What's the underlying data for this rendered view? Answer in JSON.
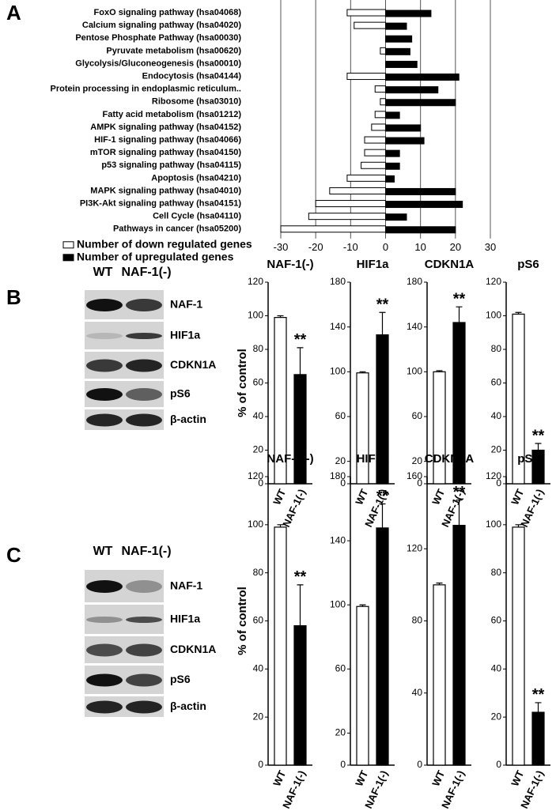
{
  "panel_labels": [
    "A",
    "B",
    "C"
  ],
  "blots": [
    {
      "lanes": [
        "WT",
        "NAF-1(-)"
      ],
      "proteins": [
        "NAF-1",
        "HIF1a",
        "CDKN1A",
        "pS6",
        "β-actin"
      ]
    },
    {
      "lanes": [
        "WT",
        "NAF-1(-)"
      ],
      "proteins": [
        "NAF-1",
        "HIF1a",
        "CDKN1A",
        "pS6",
        "β-actin"
      ]
    }
  ],
  "chart_data": [
    {
      "type": "bar",
      "orientation": "horizontal",
      "categories": [
        "FoxO signaling pathway (hsa04068)",
        "Calcium signaling pathway (hsa04020)",
        "Pentose Phosphate Pathway (hsa00030)",
        "Pyruvate metabolism (hsa00620)",
        "Glycolysis/Gluconeogenesis (hsa00010)",
        "Endocytosis (hsa04144)",
        "Protein processing in endoplasmic reticulum..",
        "Ribosome (hsa03010)",
        "Fatty acid metabolism (hsa01212)",
        "AMPK signaling pathway (hsa04152)",
        "HIF-1 signaling pathway (hsa04066)",
        "mTOR signaling pathway (hsa04150)",
        "p53 signaling pathway (hsa04115)",
        "Apoptosis (hsa04210)",
        "MAPK signaling pathway (hsa04010)",
        "PI3K-Akt signaling pathway (hsa04151)",
        "Cell Cycle (hsa04110)",
        "Pathways in cancer (hsa05200)"
      ],
      "series": [
        {
          "name": "Number of down regulated genes",
          "color": "#ffffff",
          "values": [
            -11,
            -9,
            0,
            -1.5,
            0,
            -11,
            -3,
            -1.5,
            -3,
            -4,
            -6,
            -6,
            -7,
            -11,
            -16,
            -20,
            -22,
            -30
          ]
        },
        {
          "name": "Number of upregulated genes",
          "color": "#000000",
          "values": [
            13,
            6,
            7.5,
            7,
            9,
            21,
            15,
            20,
            4,
            10,
            11,
            4,
            4,
            2.5,
            20,
            22,
            6,
            20
          ]
        }
      ],
      "xlim": [
        -30,
        30
      ],
      "xticks": [
        -30,
        -20,
        -10,
        0,
        10,
        20,
        30
      ],
      "grid": true
    },
    {
      "type": "bar",
      "title": "NAF-1(-)",
      "ylabel": "% of control",
      "categories": [
        "WT",
        "NAF-1(-)"
      ],
      "values": [
        99,
        65
      ],
      "errors": [
        1,
        16
      ],
      "colors": [
        "#ffffff",
        "#000000"
      ],
      "annotation": "**",
      "ylim": [
        0,
        120
      ],
      "yticks": [
        0,
        20,
        40,
        60,
        80,
        100,
        120
      ]
    },
    {
      "type": "bar",
      "title": "HIF1a",
      "categories": [
        "WT",
        "NAF-1(-)"
      ],
      "values": [
        99,
        133
      ],
      "errors": [
        1,
        20
      ],
      "colors": [
        "#ffffff",
        "#000000"
      ],
      "annotation": "**",
      "ylim": [
        0,
        180
      ],
      "yticks": [
        0,
        20,
        60,
        100,
        140,
        180
      ]
    },
    {
      "type": "bar",
      "title": "CDKN1A",
      "categories": [
        "WT",
        "NAF-1(-)"
      ],
      "values": [
        100,
        144
      ],
      "errors": [
        1,
        14
      ],
      "colors": [
        "#ffffff",
        "#000000"
      ],
      "annotation": "**",
      "ylim": [
        0,
        180
      ],
      "yticks": [
        0,
        20,
        60,
        100,
        140,
        180
      ]
    },
    {
      "type": "bar",
      "title": "pS6",
      "categories": [
        "WT",
        "NAF-1(-)"
      ],
      "values": [
        101,
        20
      ],
      "errors": [
        1,
        4
      ],
      "colors": [
        "#ffffff",
        "#000000"
      ],
      "annotation": "**",
      "ylim": [
        0,
        120
      ],
      "yticks": [
        0,
        20,
        40,
        60,
        80,
        100,
        120
      ]
    },
    {
      "type": "bar",
      "title": "NAF-1(-)",
      "ylabel": "% of control",
      "categories": [
        "WT",
        "NAF-1(-)"
      ],
      "values": [
        99,
        58
      ],
      "errors": [
        1,
        17
      ],
      "colors": [
        "#ffffff",
        "#000000"
      ],
      "annotation": "**",
      "ylim": [
        0,
        120
      ],
      "yticks": [
        0,
        20,
        40,
        60,
        80,
        100,
        120
      ]
    },
    {
      "type": "bar",
      "title": "HIF1a",
      "categories": [
        "WT",
        "NAF-1(-)"
      ],
      "values": [
        99,
        148
      ],
      "errors": [
        1,
        15
      ],
      "colors": [
        "#ffffff",
        "#000000"
      ],
      "annotation": "**",
      "ylim": [
        0,
        180
      ],
      "yticks": [
        0,
        20,
        60,
        100,
        140,
        180
      ]
    },
    {
      "type": "bar",
      "title": "CDKN1A",
      "categories": [
        "WT",
        "NAF-1(-)"
      ],
      "values": [
        100,
        133
      ],
      "errors": [
        1,
        14
      ],
      "colors": [
        "#ffffff",
        "#000000"
      ],
      "annotation": "**",
      "ylim": [
        0,
        160
      ],
      "yticks": [
        0,
        40,
        80,
        120,
        160
      ]
    },
    {
      "type": "bar",
      "title": "pS6",
      "categories": [
        "WT",
        "NAF-1(-)"
      ],
      "values": [
        99,
        22
      ],
      "errors": [
        1,
        4
      ],
      "colors": [
        "#ffffff",
        "#000000"
      ],
      "annotation": "**",
      "ylim": [
        0,
        120
      ],
      "yticks": [
        0,
        20,
        40,
        60,
        80,
        100,
        120
      ]
    }
  ]
}
